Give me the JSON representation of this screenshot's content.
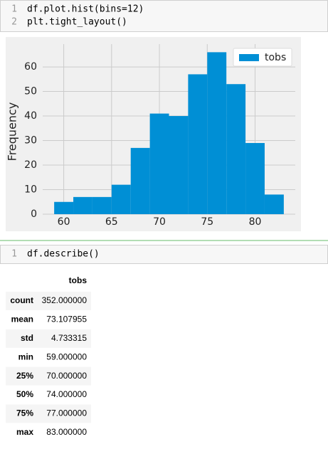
{
  "cells": [
    {
      "line_numbers": [
        "1",
        "2"
      ],
      "code": [
        "df.plot.hist(bins=12)",
        "plt.tight_layout()"
      ]
    },
    {
      "line_numbers": [
        "1"
      ],
      "code": [
        "df.describe()"
      ]
    }
  ],
  "chart_data": {
    "type": "histogram",
    "ylabel": "Frequency",
    "bins": [
      59,
      61,
      63,
      65,
      67,
      69,
      71,
      73,
      75,
      77,
      79,
      81,
      83
    ],
    "series": [
      {
        "name": "tobs",
        "color": "#008fd5",
        "values": [
          5,
          7,
          7,
          12,
          27,
          41,
          40,
          57,
          66,
          53,
          29,
          8
        ]
      }
    ],
    "xlim": [
      57.8,
      84.2
    ],
    "xticks": [
      60,
      65,
      70,
      75,
      80
    ],
    "ylim": [
      0,
      69.3
    ],
    "yticks": [
      0,
      10,
      20,
      30,
      40,
      50,
      60
    ],
    "grid": true,
    "legend": "upper right"
  },
  "table": {
    "column": "tobs",
    "rows": [
      [
        "count",
        "352.000000"
      ],
      [
        "mean",
        "73.107955"
      ],
      [
        "std",
        "4.733315"
      ],
      [
        "min",
        "59.000000"
      ],
      [
        "25%",
        "70.000000"
      ],
      [
        "50%",
        "74.000000"
      ],
      [
        "75%",
        "77.000000"
      ],
      [
        "max",
        "83.000000"
      ]
    ]
  }
}
